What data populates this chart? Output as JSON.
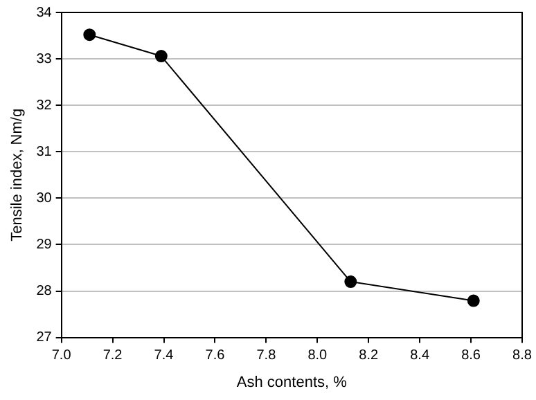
{
  "chart_data": {
    "type": "line",
    "xlabel": "Ash contents, %",
    "ylabel": "Tensile index, Nm/g",
    "x": [
      7.11,
      7.39,
      8.13,
      8.61
    ],
    "series": [
      {
        "color": "#000000",
        "values": [
          33.52,
          33.06,
          28.2,
          27.79
        ]
      }
    ],
    "xlim": [
      7.0,
      8.8
    ],
    "xticks": [
      {
        "value": 7.0,
        "label": "7.0"
      },
      {
        "value": 7.2,
        "label": "7.2"
      },
      {
        "value": 7.4,
        "label": "7.4"
      },
      {
        "value": 7.6,
        "label": "7.6"
      },
      {
        "value": 7.8,
        "label": "7.8"
      },
      {
        "value": 8.0,
        "label": "8.0"
      },
      {
        "value": 8.2,
        "label": "8.2"
      },
      {
        "value": 8.4,
        "label": "8.4"
      },
      {
        "value": 8.6,
        "label": "8.6"
      },
      {
        "value": 8.8,
        "label": "8.8"
      }
    ],
    "ylim": [
      27,
      34
    ],
    "yticks": [
      27,
      28,
      29,
      30,
      31,
      32,
      33,
      34
    ],
    "grid": "y",
    "legend": false,
    "marker": "circle",
    "line_style": "solid"
  }
}
